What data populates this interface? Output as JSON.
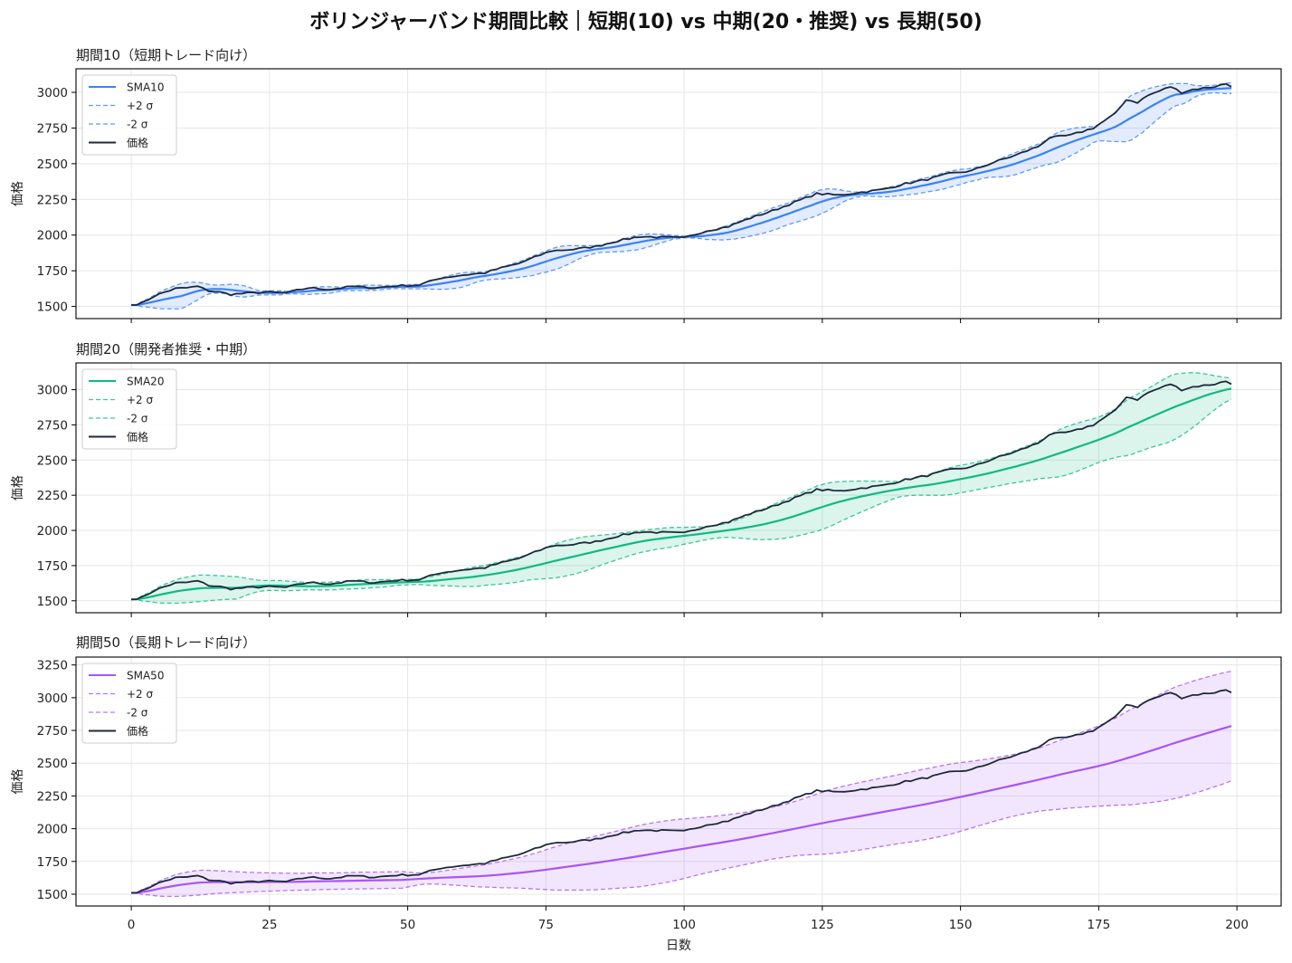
{
  "figure": {
    "title": "ボリンジャーバンド期間比較｜短期(10) vs 中期(20・推奨) vs 長期(50)"
  },
  "colors": {
    "price": "#1e293b",
    "sma10": "#3b82f6",
    "sma20": "#10b981",
    "sma50": "#a855f7"
  },
  "chart_data": [
    {
      "type": "line",
      "title": "期間10（短期トレード向け）",
      "xlabel": "",
      "ylabel": "価格",
      "xlim": [
        -10,
        208
      ],
      "ylim": [
        1415,
        3165
      ],
      "xticks": [
        0,
        25,
        50,
        75,
        100,
        125,
        150,
        175,
        200
      ],
      "yticks": [
        1500,
        1750,
        2000,
        2250,
        2500,
        2750,
        3000
      ],
      "grid": true,
      "legend": "top-left",
      "period": 10,
      "color": "#3b82f6",
      "series": [
        {
          "name": "SMA10",
          "style": "solid"
        },
        {
          "name": "+2 σ",
          "style": "dashed"
        },
        {
          "name": "-2 σ",
          "style": "dashed"
        },
        {
          "name": "価格",
          "style": "solid"
        }
      ]
    },
    {
      "type": "line",
      "title": "期間20（開発者推奨・中期）",
      "xlabel": "",
      "ylabel": "価格",
      "xlim": [
        -10,
        208
      ],
      "ylim": [
        1415,
        3190
      ],
      "xticks": [
        0,
        25,
        50,
        75,
        100,
        125,
        150,
        175,
        200
      ],
      "yticks": [
        1500,
        1750,
        2000,
        2250,
        2500,
        2750,
        3000
      ],
      "grid": true,
      "legend": "top-left",
      "period": 20,
      "color": "#10b981",
      "series": [
        {
          "name": "SMA20",
          "style": "solid"
        },
        {
          "name": "+2 σ",
          "style": "dashed"
        },
        {
          "name": "-2 σ",
          "style": "dashed"
        },
        {
          "name": "価格",
          "style": "solid"
        }
      ]
    },
    {
      "type": "line",
      "title": "期間50（長期トレード向け）",
      "xlabel": "日数",
      "ylabel": "価格",
      "xlim": [
        -10,
        208
      ],
      "ylim": [
        1410,
        3310
      ],
      "xticks": [
        0,
        25,
        50,
        75,
        100,
        125,
        150,
        175,
        200
      ],
      "yticks": [
        1500,
        1750,
        2000,
        2250,
        2500,
        2750,
        3000,
        3250
      ],
      "grid": true,
      "legend": "top-left",
      "period": 50,
      "color": "#a855f7",
      "series": [
        {
          "name": "SMA50",
          "style": "solid"
        },
        {
          "name": "+2 σ",
          "style": "dashed"
        },
        {
          "name": "-2 σ",
          "style": "dashed"
        },
        {
          "name": "価格",
          "style": "solid"
        }
      ]
    }
  ],
  "price_anchors": {
    "x": [
      0,
      2,
      4,
      6,
      8,
      10,
      12,
      14,
      16,
      18,
      20,
      24,
      28,
      32,
      36,
      40,
      44,
      48,
      52,
      56,
      60,
      64,
      66,
      70,
      74,
      76,
      80,
      84,
      88,
      92,
      96,
      100,
      104,
      108,
      112,
      116,
      120,
      124,
      128,
      132,
      136,
      140,
      144,
      148,
      152,
      156,
      160,
      164,
      166,
      170,
      174,
      176,
      178,
      180,
      182,
      184,
      186,
      188,
      190,
      192,
      194,
      196,
      198,
      199
    ],
    "y": [
      1510,
      1525,
      1570,
      1600,
      1625,
      1630,
      1640,
      1610,
      1600,
      1585,
      1590,
      1600,
      1595,
      1630,
      1620,
      1640,
      1630,
      1645,
      1650,
      1700,
      1720,
      1735,
      1760,
      1800,
      1860,
      1890,
      1900,
      1920,
      1960,
      1990,
      1985,
      1980,
      2030,
      2060,
      2120,
      2170,
      2230,
      2290,
      2280,
      2300,
      2320,
      2360,
      2390,
      2430,
      2450,
      2510,
      2560,
      2620,
      2680,
      2700,
      2750,
      2800,
      2850,
      2950,
      2930,
      2980,
      3010,
      3040,
      3000,
      3020,
      3030,
      3040,
      3060,
      3045
    ]
  }
}
